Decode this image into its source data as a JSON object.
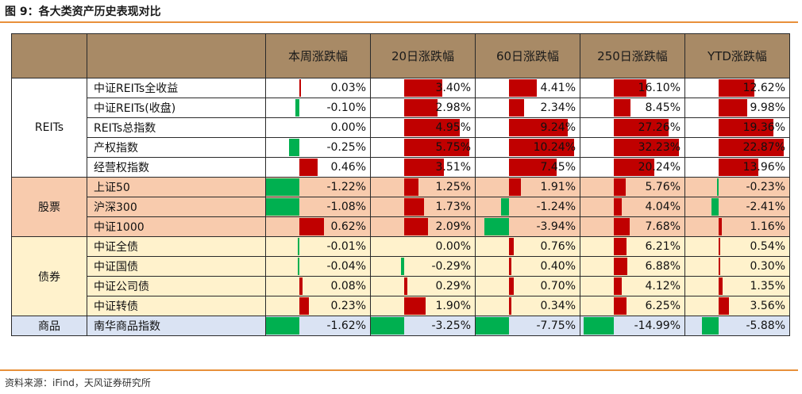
{
  "title": "图 9：各大类资产历史表现对比",
  "source": "资料来源：iFind，天风证券研究所",
  "header": [
    "",
    "",
    "本周涨跌幅",
    "20日涨跌幅",
    "60日涨跌幅",
    "250日涨跌幅",
    "YTD涨跌幅"
  ],
  "colors": {
    "positive": "#c00000",
    "negative": "#00b050",
    "header": "#a88a66"
  },
  "groups": [
    {
      "label": "REITs",
      "class": "g-reits",
      "rows": [
        {
          "name": "中证REITs全收益",
          "values": [
            "0.03%",
            "3.40%",
            "4.41%",
            "16.10%",
            "12.62%"
          ],
          "nums": [
            0.03,
            3.4,
            4.41,
            16.1,
            12.62
          ]
        },
        {
          "name": "中证REITs(收盘)",
          "values": [
            "-0.10%",
            "2.98%",
            "2.34%",
            "8.45%",
            "9.98%"
          ],
          "nums": [
            -0.1,
            2.98,
            2.34,
            8.45,
            9.98
          ]
        },
        {
          "name": "REITs总指数",
          "values": [
            "0.00%",
            "4.95%",
            "9.24%",
            "27.26%",
            "19.36%"
          ],
          "nums": [
            0.0,
            4.95,
            9.24,
            27.26,
            19.36
          ]
        },
        {
          "name": "产权指数",
          "values": [
            "-0.25%",
            "5.75%",
            "10.24%",
            "32.23%",
            "22.87%"
          ],
          "nums": [
            -0.25,
            5.75,
            10.24,
            32.23,
            22.87
          ]
        },
        {
          "name": "经营权指数",
          "values": [
            "0.46%",
            "3.51%",
            "7.45%",
            "20.24%",
            "13.96%"
          ],
          "nums": [
            0.46,
            3.51,
            7.45,
            20.24,
            13.96
          ]
        }
      ]
    },
    {
      "label": "股票",
      "class": "g-stock",
      "rows": [
        {
          "name": "上证50",
          "values": [
            "-1.22%",
            "1.25%",
            "1.91%",
            "5.76%",
            "-0.23%"
          ],
          "nums": [
            -1.22,
            1.25,
            1.91,
            5.76,
            -0.23
          ]
        },
        {
          "name": "沪深300",
          "values": [
            "-1.08%",
            "1.73%",
            "-1.24%",
            "4.04%",
            "-2.41%"
          ],
          "nums": [
            -1.08,
            1.73,
            -1.24,
            4.04,
            -2.41
          ]
        },
        {
          "name": "中证1000",
          "values": [
            "0.62%",
            "2.09%",
            "-3.94%",
            "7.68%",
            "1.16%"
          ],
          "nums": [
            0.62,
            2.09,
            -3.94,
            7.68,
            1.16
          ]
        }
      ]
    },
    {
      "label": "债券",
      "class": "g-bond",
      "rows": [
        {
          "name": "中证全债",
          "values": [
            "-0.01%",
            "0.00%",
            "0.76%",
            "6.21%",
            "0.54%"
          ],
          "nums": [
            -0.01,
            0.0,
            0.76,
            6.21,
            0.54
          ]
        },
        {
          "name": "中证国债",
          "values": [
            "-0.04%",
            "-0.29%",
            "0.40%",
            "6.88%",
            "0.30%"
          ],
          "nums": [
            -0.04,
            -0.29,
            0.4,
            6.88,
            0.3
          ]
        },
        {
          "name": "中证公司债",
          "values": [
            "0.08%",
            "0.29%",
            "0.70%",
            "4.12%",
            "1.35%"
          ],
          "nums": [
            0.08,
            0.29,
            0.7,
            4.12,
            1.35
          ]
        },
        {
          "name": "中证转债",
          "values": [
            "0.23%",
            "1.90%",
            "0.34%",
            "6.25%",
            "3.56%"
          ],
          "nums": [
            0.23,
            1.9,
            0.34,
            6.25,
            3.56
          ]
        }
      ]
    },
    {
      "label": "商品",
      "class": "g-comm",
      "rows": [
        {
          "name": "南华商品指数",
          "values": [
            "-1.62%",
            "-3.25%",
            "-7.75%",
            "-14.99%",
            "-5.88%"
          ],
          "nums": [
            -1.62,
            -3.25,
            -7.75,
            -14.99,
            -5.88
          ]
        }
      ]
    }
  ]
}
